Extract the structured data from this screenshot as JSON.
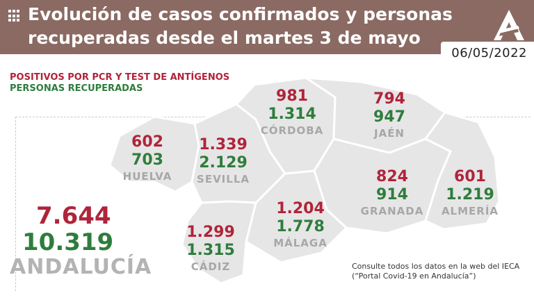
{
  "header": {
    "title": "Evolución de casos confirmados y personas recuperadas desde el martes 3 de mayo",
    "date": "06/05/2022"
  },
  "legend": {
    "positives": "POSITIVOS POR PCR Y TEST DE ANTÍGENOS",
    "recovered": "PERSONAS RECUPERADAS"
  },
  "colors": {
    "header_bg": "#8a6a62",
    "positives": "#b0243a",
    "recovered": "#2e7d3c",
    "map_fill": "#e6e6e6",
    "province_label": "#a7a7a7"
  },
  "provinces": [
    {
      "name": "HUELVA",
      "positives": "602",
      "recovered": "703"
    },
    {
      "name": "SEVILLA",
      "positives": "1.339",
      "recovered": "2.129"
    },
    {
      "name": "CÓRDOBA",
      "positives": "981",
      "recovered": "1.314"
    },
    {
      "name": "JAÉN",
      "positives": "794",
      "recovered": "947"
    },
    {
      "name": "GRANADA",
      "positives": "824",
      "recovered": "914"
    },
    {
      "name": "ALMERÍA",
      "positives": "601",
      "recovered": "1.219"
    },
    {
      "name": "MÁLAGA",
      "positives": "1.204",
      "recovered": "1.778"
    },
    {
      "name": "CÁDIZ",
      "positives": "1.299",
      "recovered": "1.315"
    }
  ],
  "total": {
    "name": "ANDALUCÍA",
    "positives": "7.644",
    "recovered": "10.319"
  },
  "note": "Consulte todos los datos en la web del IECA (“Portal Covid-19 en Andalucía”)",
  "logo_icon": "junta-andalucia-logo-icon",
  "menu_icon": "grid-icon"
}
